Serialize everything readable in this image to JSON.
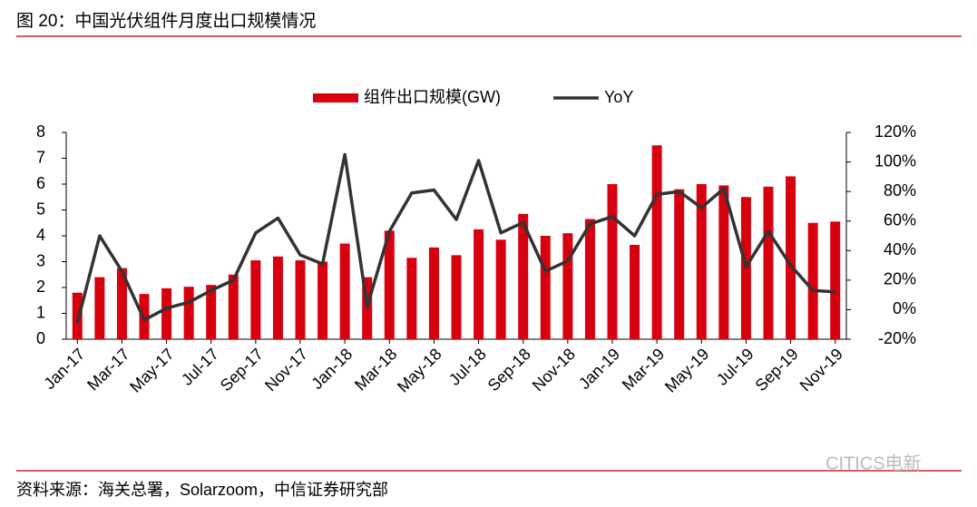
{
  "title": "图 20：中国光伏组件月度出口规模情况",
  "source": "资料来源：海关总署，Solarzoom，中信证券研究部",
  "watermark": "CITICS电新",
  "chart_data": {
    "type": "bar",
    "categories": [
      "Jan-17",
      null,
      "Mar-17",
      null,
      "May-17",
      null,
      "Jul-17",
      null,
      "Sep-17",
      null,
      "Nov-17",
      null,
      "Jan-18",
      null,
      "Mar-18",
      null,
      "May-18",
      null,
      "Jul-18",
      null,
      "Sep-18",
      null,
      "Nov-18",
      null,
      "Jan-19",
      null,
      "Mar-19",
      null,
      "May-19",
      null,
      "Jul-19",
      null,
      "Sep-19",
      null,
      "Nov-19"
    ],
    "series": [
      {
        "name": "组件出口规模(GW)",
        "color": "#d7000f",
        "values": [
          1.8,
          2.4,
          2.75,
          1.75,
          1.97,
          2.03,
          2.1,
          2.5,
          3.05,
          3.2,
          3.05,
          3.0,
          3.7,
          2.4,
          4.2,
          3.15,
          3.55,
          3.25,
          4.25,
          3.85,
          4.85,
          4.0,
          4.1,
          4.65,
          6.0,
          3.65,
          7.5,
          5.8,
          6.0,
          5.95,
          5.5,
          5.9,
          6.3,
          4.5,
          4.55
        ]
      },
      {
        "name": "YoY",
        "color": "#333333",
        "type": "line",
        "axis": "y2",
        "values": [
          -9,
          50,
          26,
          -7,
          1,
          5,
          13,
          20,
          52,
          62,
          37,
          31,
          105,
          2,
          53,
          79,
          81,
          61,
          101,
          52,
          59,
          26,
          33,
          58,
          63,
          50,
          78,
          80,
          69,
          82,
          29,
          53,
          30,
          13,
          12
        ]
      }
    ],
    "ylim": [
      0,
      8
    ],
    "yticks": [
      0,
      1,
      2,
      3,
      4,
      5,
      6,
      7,
      8
    ],
    "y2lim": [
      -20,
      120
    ],
    "y2ticks": [
      {
        "value": -20,
        "label": "-20%"
      },
      {
        "value": 0,
        "label": "0%"
      },
      {
        "value": 20,
        "label": "20%"
      },
      {
        "value": 40,
        "label": "40%"
      },
      {
        "value": 60,
        "label": "60%"
      },
      {
        "value": 80,
        "label": "80%"
      },
      {
        "value": 100,
        "label": "100%"
      },
      {
        "value": 120,
        "label": "120%"
      }
    ],
    "legend": "top"
  }
}
